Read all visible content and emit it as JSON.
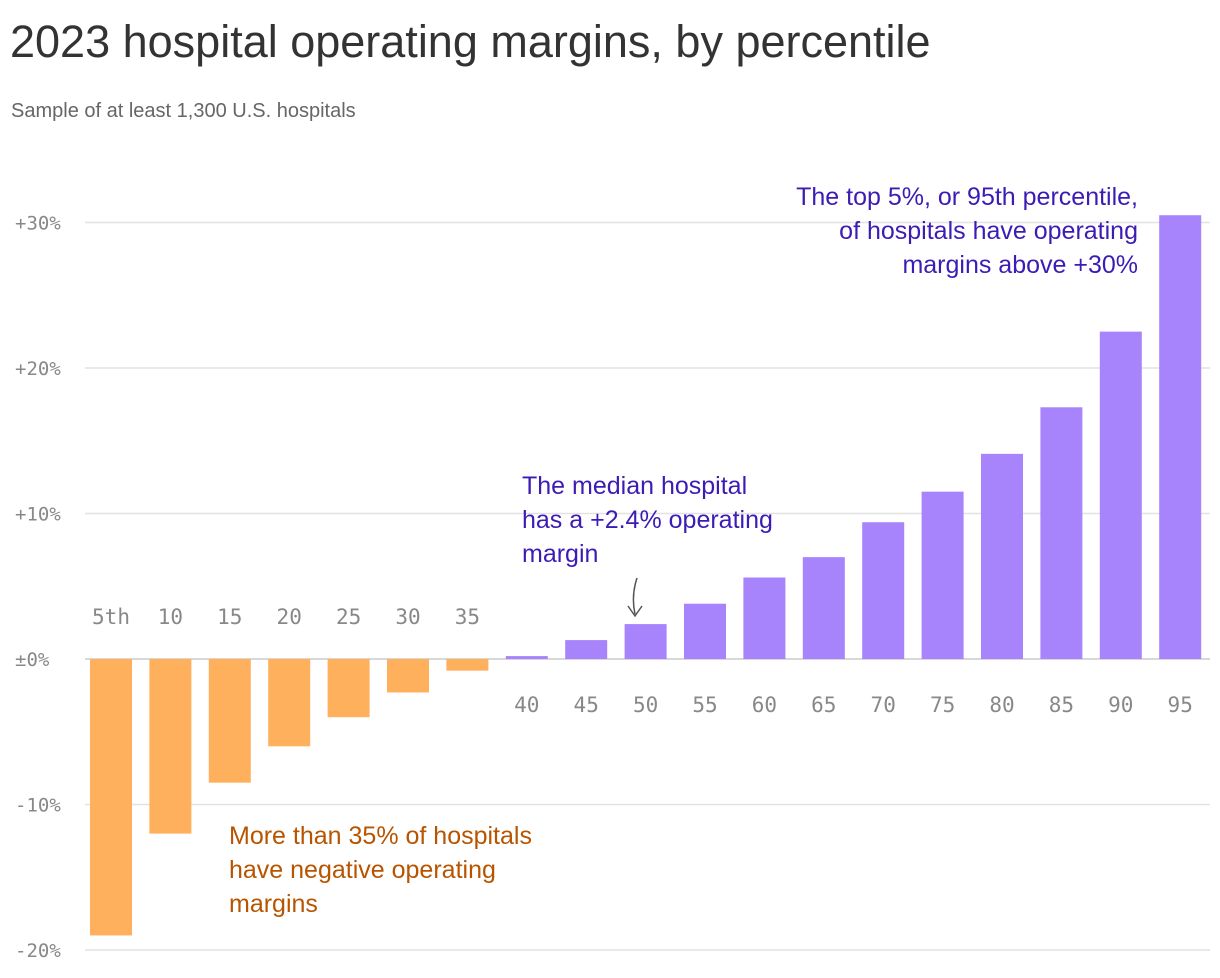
{
  "chart_data": {
    "type": "bar",
    "title": "2023 hospital operating margins, by percentile",
    "subtitle": "Sample of at least 1,300 U.S. hospitals",
    "xlabel": "",
    "ylabel": "",
    "categories": [
      "5th",
      "10",
      "15",
      "20",
      "25",
      "30",
      "35",
      "40",
      "45",
      "50",
      "55",
      "60",
      "65",
      "70",
      "75",
      "80",
      "85",
      "90",
      "95"
    ],
    "values": [
      -19.0,
      -12.0,
      -8.5,
      -6.0,
      -4.0,
      -2.3,
      -0.8,
      0.2,
      1.3,
      2.4,
      3.8,
      5.6,
      7.0,
      9.4,
      11.5,
      14.1,
      17.3,
      22.5,
      30.5
    ],
    "ylim": [
      -20,
      32
    ],
    "yticks": [
      {
        "value": 30,
        "label": "+30%"
      },
      {
        "value": 20,
        "label": "+20%"
      },
      {
        "value": 10,
        "label": "+10%"
      },
      {
        "value": 0,
        "label": "±0%"
      },
      {
        "value": -10,
        "label": "-10%"
      },
      {
        "value": -20,
        "label": "-20%"
      }
    ],
    "grid": true,
    "colors": {
      "negative": "#ffb05c",
      "positive": "#a784fb",
      "negative_text": "#b85400",
      "positive_text": "#3c1cb4"
    },
    "annotations": [
      {
        "lines": [
          "The top 5%, or 95th percentile,",
          "of hospitals have operating",
          "margins above +30%"
        ],
        "color": "positive_text"
      },
      {
        "lines": [
          "The median hospital",
          "has a +2.4% operating",
          "margin"
        ],
        "color": "positive_text"
      },
      {
        "lines": [
          "More than 35% of hospitals",
          "have negative operating",
          "margins"
        ],
        "color": "negative_text"
      }
    ]
  }
}
